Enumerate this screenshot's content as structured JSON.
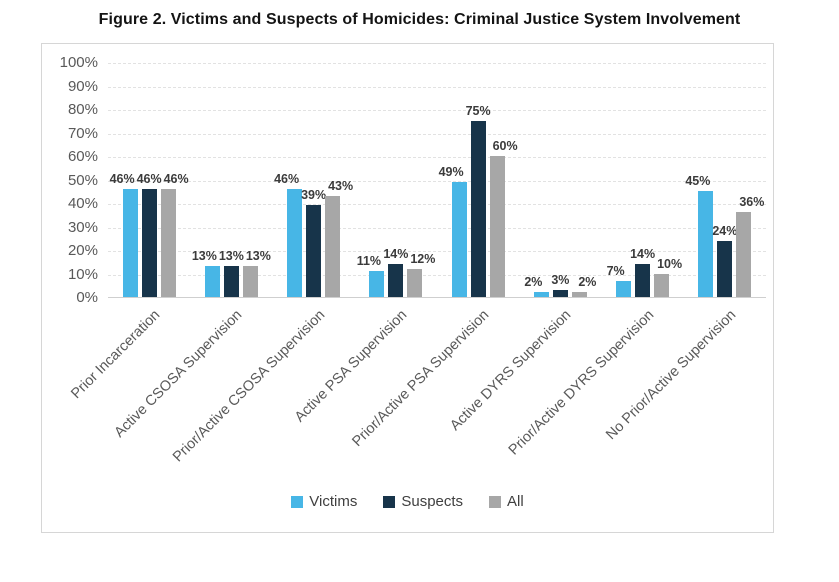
{
  "title": "Figure 2. Victims and Suspects of Homicides: Criminal Justice System Involvement",
  "chart_data": {
    "type": "bar",
    "title": "Figure 2. Victims and Suspects of Homicides: Criminal Justice System Involvement",
    "categories": [
      "Prior Incarceration",
      "Active CSOSA Supervision",
      "Prior/Active CSOSA Supervision",
      "Active PSA Supervision",
      "Prior/Active PSA Supervision",
      "Active DYRS Supervision",
      "Prior/Active DYRS Supervision",
      "No Prior/Active Supervision"
    ],
    "series": [
      {
        "name": "Victims",
        "color": "#47b6e6",
        "values": [
          46,
          13,
          46,
          11,
          49,
          2,
          7,
          45
        ]
      },
      {
        "name": "Suspects",
        "color": "#17344a",
        "values": [
          46,
          13,
          39,
          14,
          75,
          3,
          14,
          24
        ]
      },
      {
        "name": "All",
        "color": "#a7a7a7",
        "values": [
          46,
          13,
          43,
          12,
          60,
          2,
          10,
          36
        ]
      }
    ],
    "value_label_suffix": "%",
    "y_ticks": [
      {
        "value": 0,
        "label": "0%"
      },
      {
        "value": 10,
        "label": "10%"
      },
      {
        "value": 20,
        "label": "20%"
      },
      {
        "value": 30,
        "label": "30%"
      },
      {
        "value": 40,
        "label": "40%"
      },
      {
        "value": 50,
        "label": "50%"
      },
      {
        "value": 60,
        "label": "60%"
      },
      {
        "value": 70,
        "label": "70%"
      },
      {
        "value": 80,
        "label": "80%"
      },
      {
        "value": 90,
        "label": "90%"
      },
      {
        "value": 100,
        "label": "100%"
      }
    ],
    "ylim": [
      0,
      100
    ],
    "xlabel": "",
    "ylabel": "",
    "grid": true,
    "legend_position": "bottom"
  }
}
